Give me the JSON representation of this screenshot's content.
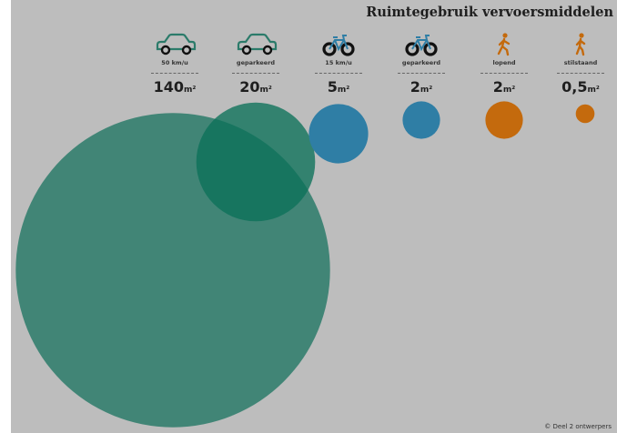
{
  "chart_data": {
    "type": "bubble",
    "title": "Ruimtegebruik vervoersmiddelen",
    "unit": "m²",
    "categories": [
      "50 km/u",
      "geparkeerd",
      "15 km/u",
      "geparkeerd",
      "lopend",
      "stilstaand"
    ],
    "values": [
      140,
      20,
      5,
      2,
      2,
      0.5
    ],
    "value_labels": [
      "140",
      "20",
      "5",
      "2",
      "2",
      "0,5"
    ],
    "icons": [
      "car-icon",
      "car-icon",
      "bicycle-icon",
      "bicycle-icon",
      "walking-person-icon",
      "standing-person-icon"
    ],
    "colors": [
      "#2b7b6a",
      "#0b7158",
      "#2f7ea5",
      "#2f7ea5",
      "#c46a0d",
      "#c46a0d"
    ]
  },
  "credit": "© Deel 2 ontwerpers"
}
